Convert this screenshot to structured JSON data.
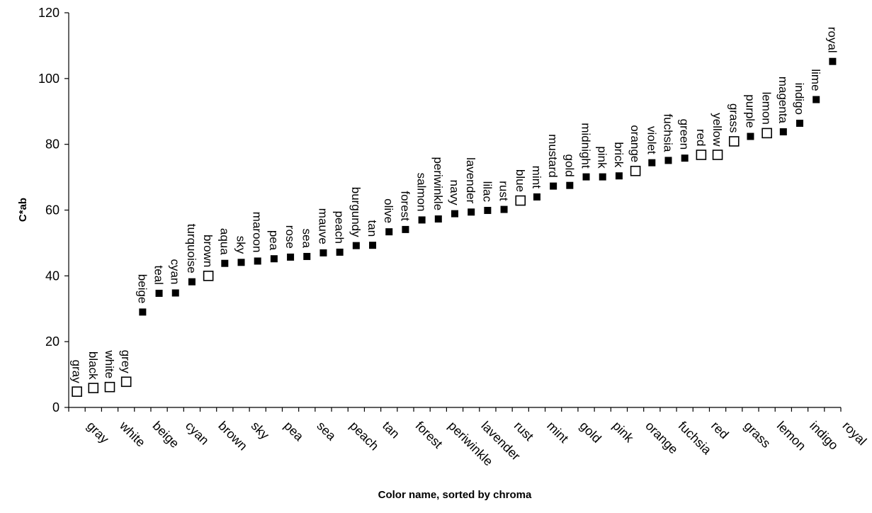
{
  "chart_data": {
    "type": "scatter",
    "title": "",
    "xlabel": "Color name, sorted by chroma",
    "ylabel": "C*ab",
    "ylim": [
      0,
      120
    ],
    "yticks": [
      0,
      20,
      40,
      60,
      80,
      100,
      120
    ],
    "grid": false,
    "legend": "none",
    "marker_styles": {
      "filled": {
        "fill": "#000000",
        "stroke": "#000000"
      },
      "open": {
        "fill": "#ffffff",
        "stroke": "#000000"
      }
    },
    "points": [
      {
        "name": "gray",
        "value": 4.8,
        "marker": "open"
      },
      {
        "name": "black",
        "value": 5.9,
        "marker": "open"
      },
      {
        "name": "white",
        "value": 6.2,
        "marker": "open"
      },
      {
        "name": "grey",
        "value": 7.8,
        "marker": "open"
      },
      {
        "name": "beige",
        "value": 29.0,
        "marker": "filled"
      },
      {
        "name": "teal",
        "value": 34.7,
        "marker": "filled"
      },
      {
        "name": "cyan",
        "value": 34.8,
        "marker": "filled"
      },
      {
        "name": "turquoise",
        "value": 38.2,
        "marker": "filled"
      },
      {
        "name": "brown",
        "value": 40.0,
        "marker": "open"
      },
      {
        "name": "aqua",
        "value": 43.8,
        "marker": "filled"
      },
      {
        "name": "sky",
        "value": 44.1,
        "marker": "filled"
      },
      {
        "name": "maroon",
        "value": 44.5,
        "marker": "filled"
      },
      {
        "name": "pea",
        "value": 45.2,
        "marker": "filled"
      },
      {
        "name": "rose",
        "value": 45.7,
        "marker": "filled"
      },
      {
        "name": "sea",
        "value": 45.9,
        "marker": "filled"
      },
      {
        "name": "mauve",
        "value": 47.0,
        "marker": "filled"
      },
      {
        "name": "peach",
        "value": 47.2,
        "marker": "filled"
      },
      {
        "name": "burgundy",
        "value": 49.2,
        "marker": "filled"
      },
      {
        "name": "tan",
        "value": 49.3,
        "marker": "filled"
      },
      {
        "name": "olive",
        "value": 53.4,
        "marker": "filled"
      },
      {
        "name": "forest",
        "value": 54.1,
        "marker": "filled"
      },
      {
        "name": "salmon",
        "value": 57.0,
        "marker": "filled"
      },
      {
        "name": "periwinkle",
        "value": 57.3,
        "marker": "filled"
      },
      {
        "name": "navy",
        "value": 58.9,
        "marker": "filled"
      },
      {
        "name": "lavender",
        "value": 59.4,
        "marker": "filled"
      },
      {
        "name": "lilac",
        "value": 59.9,
        "marker": "filled"
      },
      {
        "name": "rust",
        "value": 60.2,
        "marker": "filled"
      },
      {
        "name": "blue",
        "value": 62.9,
        "marker": "open"
      },
      {
        "name": "mint",
        "value": 64.0,
        "marker": "filled"
      },
      {
        "name": "mustard",
        "value": 67.3,
        "marker": "filled"
      },
      {
        "name": "gold",
        "value": 67.5,
        "marker": "filled"
      },
      {
        "name": "midnight",
        "value": 70.1,
        "marker": "filled"
      },
      {
        "name": "pink",
        "value": 70.1,
        "marker": "filled"
      },
      {
        "name": "brick",
        "value": 70.4,
        "marker": "filled"
      },
      {
        "name": "orange",
        "value": 71.9,
        "marker": "open"
      },
      {
        "name": "violet",
        "value": 74.4,
        "marker": "filled"
      },
      {
        "name": "fuchsia",
        "value": 75.1,
        "marker": "filled"
      },
      {
        "name": "green",
        "value": 75.8,
        "marker": "filled"
      },
      {
        "name": "red",
        "value": 76.8,
        "marker": "open"
      },
      {
        "name": "yellow",
        "value": 76.8,
        "marker": "open"
      },
      {
        "name": "grass",
        "value": 80.9,
        "marker": "open"
      },
      {
        "name": "purple",
        "value": 82.4,
        "marker": "filled"
      },
      {
        "name": "lemon",
        "value": 83.4,
        "marker": "open"
      },
      {
        "name": "magenta",
        "value": 83.8,
        "marker": "filled"
      },
      {
        "name": "indigo",
        "value": 86.4,
        "marker": "filled"
      },
      {
        "name": "lime",
        "value": 93.6,
        "marker": "filled"
      },
      {
        "name": "royal",
        "value": 105.2,
        "marker": "filled"
      }
    ]
  }
}
